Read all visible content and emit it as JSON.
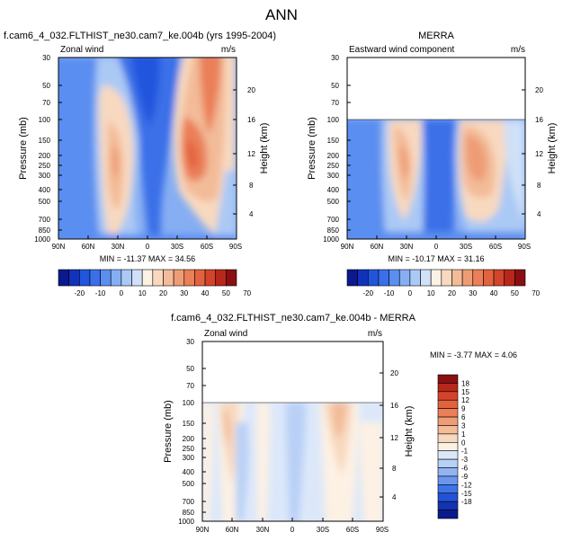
{
  "figure_title": "ANN",
  "chart_data": [
    {
      "type": "heatmap",
      "panel": "top-left",
      "title": "f.cam6_4_032.FLTHIST_ne30.cam7_ke.004b (yrs 1995-2004)",
      "subtitle_left": "Zonal wind",
      "subtitle_right": "m/s",
      "ylabel": "Pressure (mb)",
      "y2label": "Height (km)",
      "x_ticks": [
        "90N",
        "60N",
        "30N",
        "0",
        "30S",
        "60S",
        "90S"
      ],
      "y_ticks": [
        "30",
        "50",
        "70",
        "100",
        "150",
        "200",
        "250",
        "300",
        "400",
        "500",
        "700",
        "850",
        "1000"
      ],
      "y2_ticks": [
        "20",
        "16",
        "12",
        "8",
        "4"
      ],
      "stats": "MIN = -11.37   MAX = 34.56",
      "features": [
        {
          "lat": -42,
          "p": 200,
          "value": 34.56
        },
        {
          "lat": 40,
          "p": 200,
          "value": 25
        },
        {
          "lat": -38,
          "p": 30,
          "value": 30
        },
        {
          "lat": 5,
          "p": 40,
          "value": -11.37
        }
      ]
    },
    {
      "type": "heatmap",
      "panel": "top-right",
      "title": "MERRA",
      "subtitle_left": "Eastward wind component",
      "subtitle_right": "m/s",
      "ylabel": "Pressure (mb)",
      "y2label": "Height (km)",
      "x_ticks": [
        "90N",
        "60N",
        "30N",
        "0",
        "30S",
        "60S",
        "90S"
      ],
      "y_ticks": [
        "30",
        "50",
        "70",
        "100",
        "150",
        "200",
        "250",
        "300",
        "400",
        "500",
        "700",
        "850",
        "1000"
      ],
      "y2_ticks": [
        "20",
        "16",
        "12",
        "8",
        "4"
      ],
      "stats": "MIN = -10.17   MAX = 31.16",
      "features": [
        {
          "lat": -42,
          "p": 200,
          "value": 31.16
        },
        {
          "lat": 38,
          "p": 200,
          "value": 24
        },
        {
          "lat": 0,
          "p": 120,
          "value": -10.17
        }
      ]
    },
    {
      "type": "heatmap",
      "panel": "bottom",
      "title": "f.cam6_4_032.FLTHIST_ne30.cam7_ke.004b - MERRA",
      "subtitle_left": "Zonal wind",
      "subtitle_right": "m/s",
      "ylabel": "Pressure (mb)",
      "y2label": "Height (km)",
      "x_ticks": [
        "90N",
        "60N",
        "30N",
        "0",
        "30S",
        "60S",
        "90S"
      ],
      "y_ticks": [
        "30",
        "50",
        "70",
        "100",
        "150",
        "200",
        "250",
        "300",
        "400",
        "500",
        "700",
        "850",
        "1000"
      ],
      "y2_ticks": [
        "20",
        "16",
        "12",
        "8",
        "4"
      ],
      "stats": "MIN = -3.77   MAX =  4.06",
      "features": [
        {
          "lat": 55,
          "p": 200,
          "value": 4.06
        },
        {
          "lat": -38,
          "p": 150,
          "value": 3
        },
        {
          "lat": 35,
          "p": 350,
          "value": -3.77
        }
      ]
    }
  ],
  "colorbar_top": {
    "labels": [
      "-20",
      "-10",
      "0",
      "10",
      "20",
      "30",
      "40",
      "50",
      "70"
    ],
    "colors": [
      "#0a1a8c",
      "#1133bb",
      "#2255dd",
      "#3b6fe8",
      "#5a8ef0",
      "#86aef3",
      "#abc9f5",
      "#cfe0f8",
      "#fdf1e4",
      "#f8d9c0",
      "#f3bb98",
      "#ef9c76",
      "#ea7f58",
      "#e3623e",
      "#d4442a",
      "#b8271b",
      "#8a0f12"
    ]
  },
  "colorbar_diff": {
    "labels": [
      "18",
      "15",
      "12",
      "9",
      "6",
      "3",
      "1",
      "0",
      "-1",
      "-3",
      "-6",
      "-9",
      "-12",
      "-15",
      "-18"
    ],
    "colors": [
      "#8a0f12",
      "#b8271b",
      "#d4442a",
      "#e3623e",
      "#ea7f58",
      "#ef9c76",
      "#f3bb98",
      "#f8d9c0",
      "#fdf1e4",
      "#dce8fa",
      "#b9d0f6",
      "#93b4f2",
      "#6a96ee",
      "#3f74e6",
      "#2352d6",
      "#1433b4",
      "#0a1a8c"
    ]
  }
}
